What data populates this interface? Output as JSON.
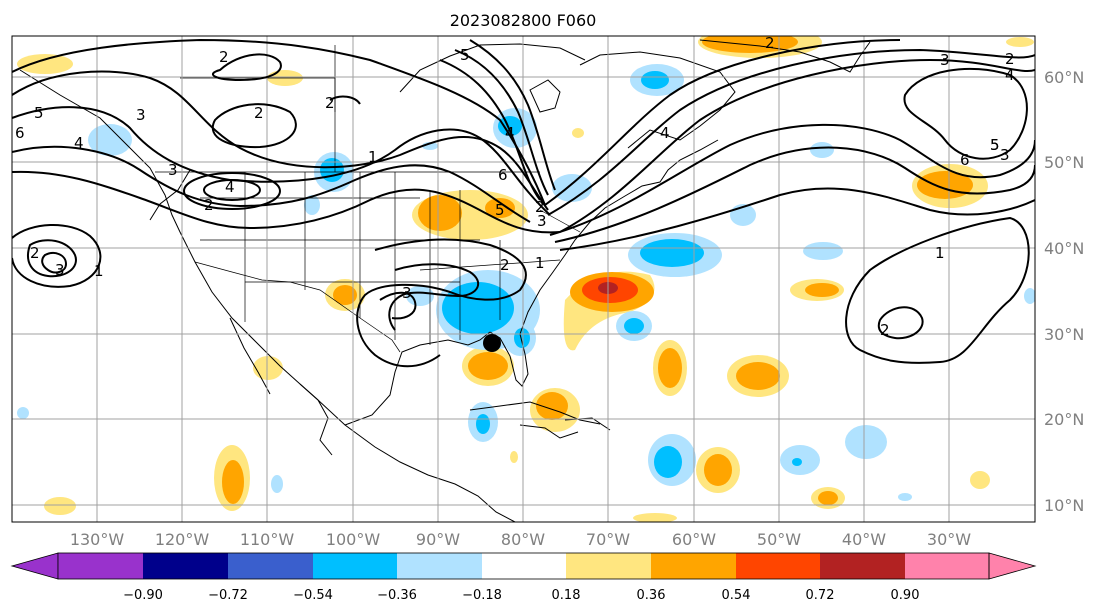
{
  "title": "2023082800 F060",
  "map": {
    "lon_range": [
      -138,
      -18
    ],
    "lat_range": [
      8,
      65
    ],
    "lat_ticks": [
      "60°N",
      "50°N",
      "40°N",
      "30°N",
      "20°N",
      "10°N"
    ],
    "lon_ticks": [
      "130°W",
      "120°W",
      "110°W",
      "100°W",
      "90°W",
      "80°W",
      "70°W",
      "60°W",
      "50°W",
      "40°W",
      "30°W"
    ],
    "gridlines": true,
    "marker": {
      "lon": -84,
      "lat": 29,
      "color": "#000000"
    }
  },
  "colorbar": {
    "orientation": "horizontal",
    "extend": "both",
    "colors": [
      "#9932cc",
      "#00008b",
      "#3a5fcd",
      "#00bfff",
      "#b0e2ff",
      "#ffffff",
      "#ffe680",
      "#ffa500",
      "#ff4500",
      "#b22222",
      "#ff82ab"
    ],
    "ticks": [
      "−0.90",
      "−0.72",
      "−0.54",
      "−0.36",
      "−0.18",
      "0.18",
      "0.36",
      "0.54",
      "0.72",
      "0.90"
    ]
  },
  "contour_labels": [
    "2",
    "3",
    "4",
    "5",
    "6",
    "2",
    "1",
    "3",
    "2",
    "4",
    "2",
    "3",
    "3",
    "1",
    "2",
    "5",
    "4",
    "6",
    "5",
    "2",
    "3",
    "4",
    "2",
    "1",
    "1",
    "2",
    "2",
    "3",
    "4",
    "5",
    "6",
    "2",
    "5",
    "3"
  ]
}
